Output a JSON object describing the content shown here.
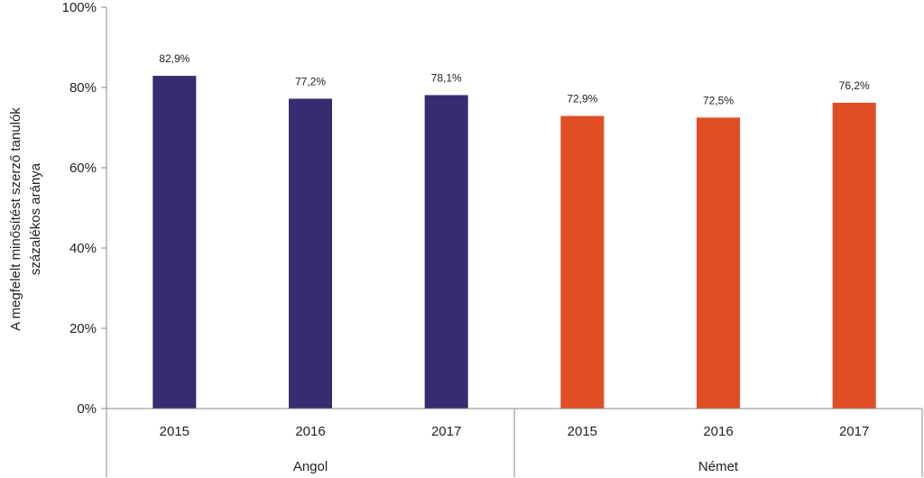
{
  "chart_data": {
    "type": "bar",
    "ylabel_lines": [
      "A megfelelt minősítést szerző tanulók",
      "százalékos aránya"
    ],
    "ylim": [
      0,
      100
    ],
    "yticks": [
      0,
      20,
      40,
      60,
      80,
      100
    ],
    "ytick_labels": [
      "0%",
      "20%",
      "40%",
      "60%",
      "80%",
      "100%"
    ],
    "grid": false,
    "groups": [
      {
        "label": "Angol",
        "color": "#352c71",
        "categories": [
          "2015",
          "2016",
          "2017"
        ],
        "values": [
          82.9,
          77.2,
          78.1
        ],
        "value_labels": [
          "82,9%",
          "77,2%",
          "78,1%"
        ]
      },
      {
        "label": "Német",
        "color": "#e04e23",
        "categories": [
          "2015",
          "2016",
          "2017"
        ],
        "values": [
          72.9,
          72.5,
          76.2
        ],
        "value_labels": [
          "72,9%",
          "72,5%",
          "76,2%"
        ]
      }
    ]
  }
}
